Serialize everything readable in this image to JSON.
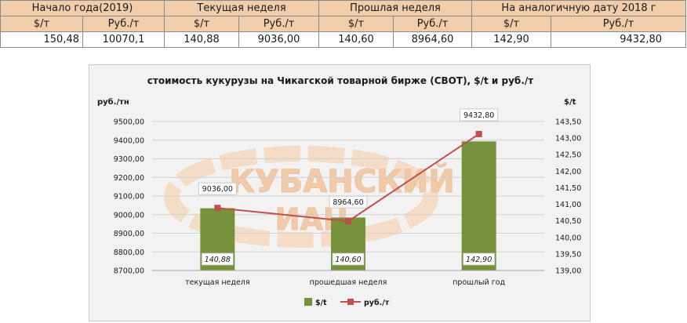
{
  "summary_table": {
    "periods": [
      "Начало года(2019)",
      "Текущая неделя",
      "Прошлая неделя",
      "На аналогичную дату 2018 г"
    ],
    "units": [
      "$/т",
      "Руб./т",
      "$/т",
      "Руб./т",
      "$/т",
      "Руб./т",
      "$/т",
      "Руб./т"
    ],
    "values": [
      "150,48",
      "10070,1",
      "140,88",
      "9036,00",
      "140,60",
      "8964,60",
      "142,90",
      "9432,80"
    ]
  },
  "colors": {
    "header_fill": "#f2cda9",
    "bar": "#76923c",
    "line": "#c0504d",
    "watermark": "#f1a360"
  },
  "watermark": {
    "line1": "КУБАНСКИЙ",
    "line2": "ИАЦ"
  },
  "chart_data": {
    "type": "bar",
    "title": "стоимость кукурузы на Чикагской товарной бирже (CBOT), $/t и руб./т",
    "ylabel": "руб./тн",
    "y2label": "$/t",
    "categories": [
      "текущая неделя",
      "прошедшая неделя",
      "прошлый год"
    ],
    "series": [
      {
        "name": "$/t",
        "type": "bar",
        "axis": "right",
        "values": [
          140.88,
          140.6,
          142.9
        ],
        "labels": [
          "140,88",
          "140,60",
          "142,90"
        ]
      },
      {
        "name": "руб./т",
        "type": "line",
        "axis": "left",
        "values": [
          9036.0,
          8964.6,
          9432.8
        ],
        "labels": [
          "9036,00",
          "8964,60",
          "9432,80"
        ]
      }
    ],
    "ylim": [
      8700,
      9500
    ],
    "y_ticks": [
      "8700,00",
      "8800,00",
      "8900,00",
      "9000,00",
      "9100,00",
      "9200,00",
      "9300,00",
      "9400,00",
      "9500,00"
    ],
    "y2lim": [
      139.0,
      143.5
    ],
    "y2_ticks": [
      "139,00",
      "139,50",
      "140,00",
      "140,50",
      "141,00",
      "141,50",
      "142,00",
      "142,50",
      "143,00",
      "143,50"
    ],
    "grid": true,
    "legend_position": "bottom"
  }
}
